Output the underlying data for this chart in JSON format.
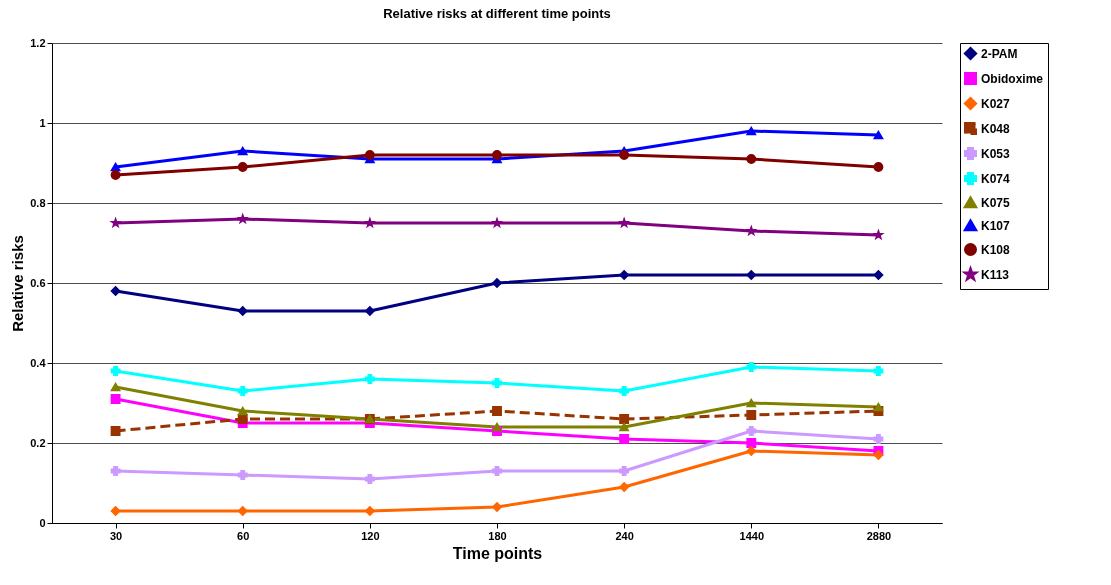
{
  "chart_data": {
    "type": "line",
    "title": "Relative risks at different time points",
    "xlabel": "Time points",
    "ylabel": "Relative risks",
    "categories": [
      "30",
      "60",
      "120",
      "180",
      "240",
      "1440",
      "2880"
    ],
    "ylim": [
      0,
      1.2
    ],
    "yticks": [
      0,
      0.2,
      0.4,
      0.6,
      0.8,
      1,
      1.2
    ],
    "grid": "y",
    "legend": "right",
    "series": [
      {
        "name": "2-PAM",
        "color": "#000080",
        "marker": "diamond",
        "values": [
          0.58,
          0.53,
          0.53,
          0.6,
          0.62,
          0.62,
          0.62
        ]
      },
      {
        "name": "Obidoxime",
        "color": "#ff00ff",
        "marker": "square",
        "values": [
          0.31,
          0.25,
          0.25,
          0.23,
          0.21,
          0.2,
          0.18
        ]
      },
      {
        "name": "K027",
        "color": "#ff6600",
        "marker": "diamond",
        "values": [
          0.03,
          0.03,
          0.03,
          0.04,
          0.09,
          0.18,
          0.17
        ]
      },
      {
        "name": "K048",
        "color": "#993300",
        "marker": "square",
        "line_style": "dashed",
        "values": [
          0.23,
          0.26,
          0.26,
          0.28,
          0.26,
          0.27,
          0.28
        ]
      },
      {
        "name": "K053",
        "color": "#cc99ff",
        "marker": "cross",
        "values": [
          0.13,
          0.12,
          0.11,
          0.13,
          0.13,
          0.23,
          0.21
        ]
      },
      {
        "name": "K074",
        "color": "#00ffff",
        "marker": "cross",
        "values": [
          0.38,
          0.33,
          0.36,
          0.35,
          0.33,
          0.39,
          0.38
        ]
      },
      {
        "name": "K075",
        "color": "#808000",
        "marker": "triangle",
        "values": [
          0.34,
          0.28,
          0.26,
          0.24,
          0.24,
          0.3,
          0.29
        ]
      },
      {
        "name": "K107",
        "color": "#0000ff",
        "marker": "triangle",
        "values": [
          0.89,
          0.93,
          0.91,
          0.91,
          0.93,
          0.98,
          0.97
        ]
      },
      {
        "name": "K108",
        "color": "#800000",
        "marker": "circle",
        "values": [
          0.87,
          0.89,
          0.92,
          0.92,
          0.92,
          0.91,
          0.89
        ]
      },
      {
        "name": "K113",
        "color": "#800080",
        "marker": "star",
        "values": [
          0.75,
          0.76,
          0.75,
          0.75,
          0.75,
          0.73,
          0.72
        ]
      }
    ]
  }
}
